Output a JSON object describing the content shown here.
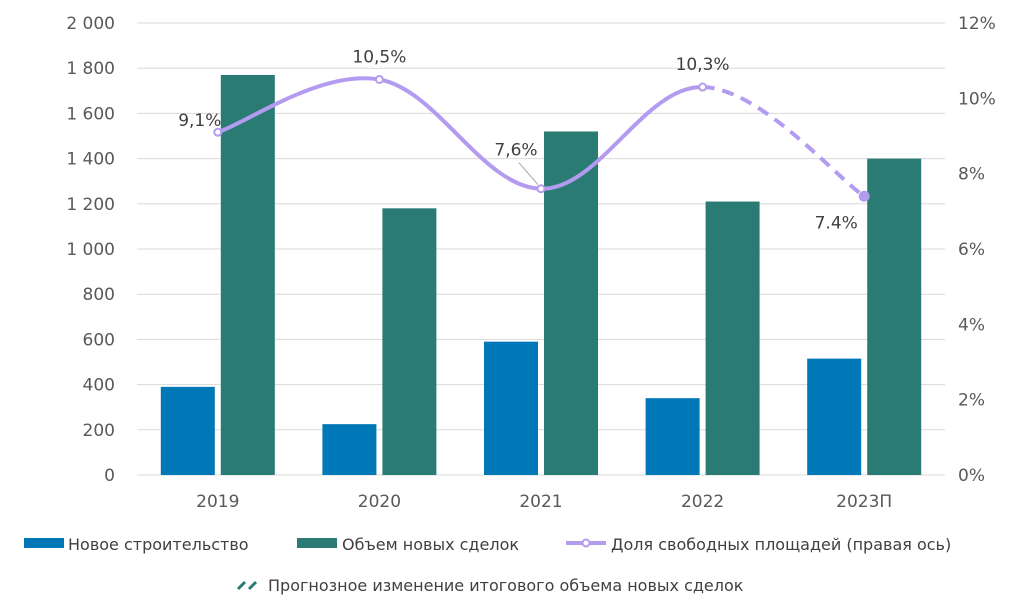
{
  "chart_data": {
    "type": "bar",
    "title": "",
    "categories": [
      "2019",
      "2020",
      "2021",
      "2022",
      "2023П"
    ],
    "series": [
      {
        "name": "Новое строительство",
        "axis": "left",
        "kind": "bar",
        "color": "#0077B6",
        "values": [
          390,
          225,
          590,
          340,
          515
        ]
      },
      {
        "name": "Объем новых сделок",
        "axis": "left",
        "kind": "bar",
        "color": "#2A7B73",
        "values": [
          1770,
          1180,
          1520,
          1210,
          1400
        ]
      },
      {
        "name": "Доля свободных площадей (правая ось)",
        "axis": "right",
        "kind": "line",
        "color": "#B39BF0",
        "values": [
          9.1,
          10.5,
          7.6,
          10.3,
          7.4
        ],
        "labels": [
          "9,1%",
          "10,5%",
          "7,6%",
          "10,3%",
          "7.4%"
        ],
        "forecast_from_index": 3
      }
    ],
    "forecast_legend": {
      "name": "Прогнозное изменение итогового объема новых сделок",
      "color": "#2A7B73"
    },
    "y_left": {
      "min": 0,
      "max": 2000,
      "step": 200,
      "tick_labels": [
        "0",
        "200",
        "400",
        "600",
        "800",
        "1 000",
        "1 200",
        "1 400",
        "1 600",
        "1 800",
        "2 000"
      ]
    },
    "y_right": {
      "min": 0,
      "max": 12,
      "step": 2,
      "tick_labels": [
        "0%",
        "2%",
        "4%",
        "6%",
        "8%",
        "10%",
        "12%"
      ]
    },
    "grid": true,
    "legend_position": "bottom"
  }
}
